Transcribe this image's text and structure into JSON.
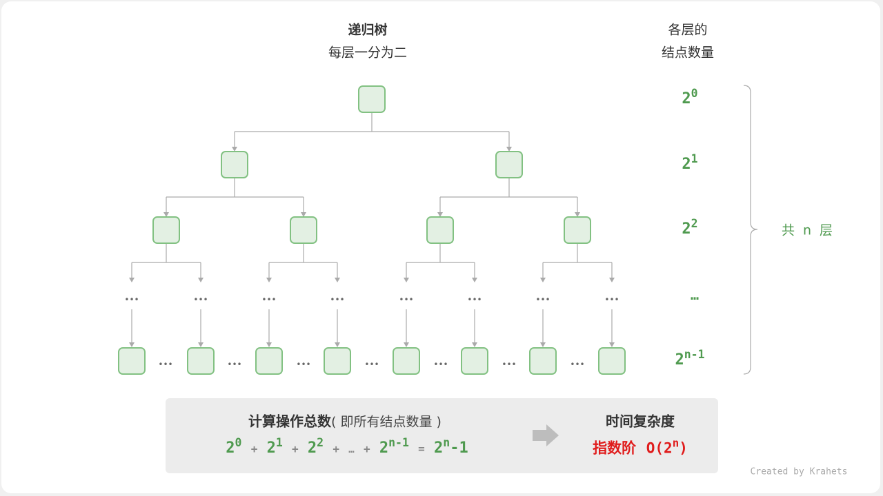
{
  "title": {
    "line1": "递归树",
    "line2": "每层一分为二"
  },
  "right_header": {
    "line1": "各层的",
    "line2": "结点数量"
  },
  "levels": [
    {
      "base": "2",
      "exp": "0"
    },
    {
      "base": "2",
      "exp": "1"
    },
    {
      "base": "2",
      "exp": "2"
    },
    {
      "ellipsis": "…"
    },
    {
      "base": "2",
      "exp": "n-1"
    }
  ],
  "brace_label": "共 n 层",
  "tree_ellipsis": "•••",
  "summary": {
    "left_title": "计算操作总数",
    "left_paren": "( 即所有结点数量 )",
    "formula": {
      "t0": "2",
      "e0": "0",
      "plus": "+",
      "t1": "2",
      "e1": "1",
      "t2": "2",
      "e2": "2",
      "dots": "…",
      "tn": "2",
      "en": "n-1",
      "eq": "=",
      "rb": "2",
      "re": "n",
      "rm": "-1"
    },
    "right_title": "时间复杂度",
    "complexity_label": "指数阶",
    "complexity_o": "O(2",
    "complexity_exp": "n",
    "complexity_close": ")"
  },
  "credit": "Created by Krahets",
  "colors": {
    "node_fill": "#e3f0e3",
    "node_stroke": "#82c182",
    "edge": "#aaaaaa",
    "green": "#4f9a4f",
    "red": "#e01b1b",
    "summary_bg": "#ececec"
  }
}
